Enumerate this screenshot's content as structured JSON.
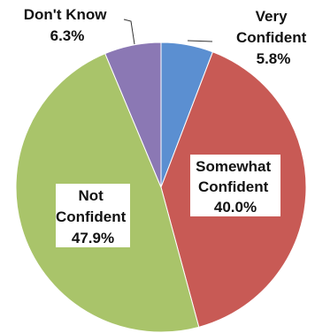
{
  "chart_data": {
    "type": "pie",
    "title": "",
    "start": "12 o'clock",
    "direction": "clockwise",
    "slices": [
      {
        "label_lines": [
          "Very",
          "Confident",
          "5.8%"
        ],
        "category": "Very Confident",
        "value": 5.8,
        "color": "#5b8fd1"
      },
      {
        "label_lines": [
          "Somewhat",
          "Confident",
          "40.0%"
        ],
        "category": "Somewhat Confident",
        "value": 40.0,
        "color": "#c85a55"
      },
      {
        "label_lines": [
          "Not",
          "Confident",
          "47.9%"
        ],
        "category": "Not Confident",
        "value": 47.9,
        "color": "#a9c46a"
      },
      {
        "label_lines": [
          "Don't Know",
          "6.3%"
        ],
        "category": "Don't Know",
        "value": 6.3,
        "color": "#8b78b4"
      }
    ]
  }
}
